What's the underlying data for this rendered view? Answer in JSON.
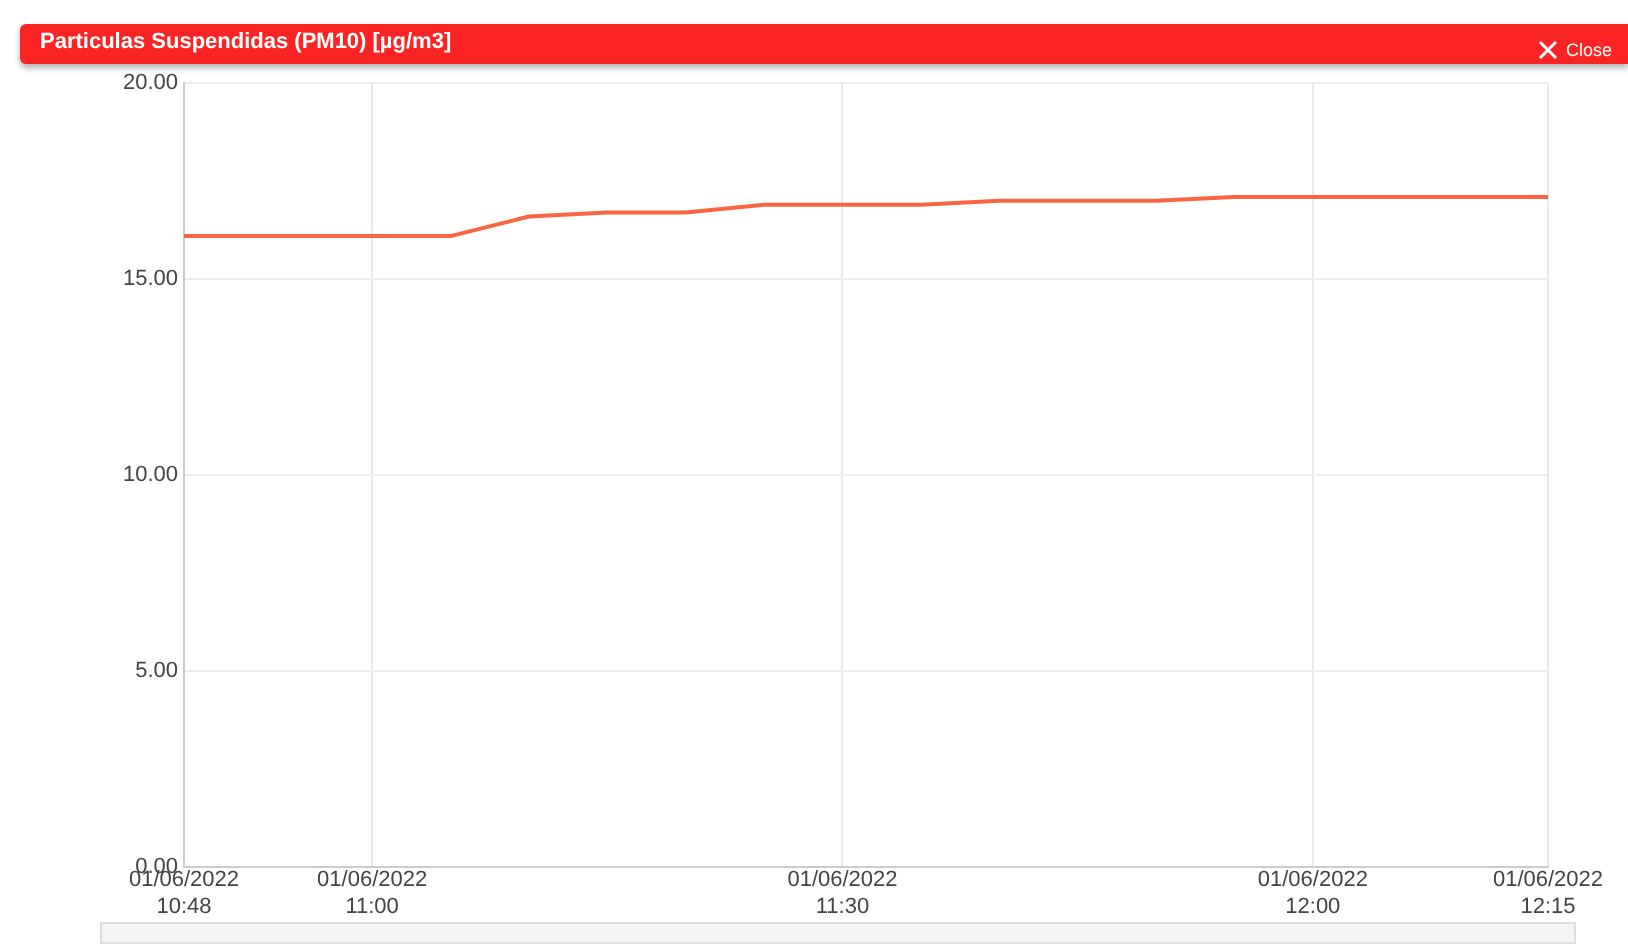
{
  "chart_data": {
    "type": "line",
    "title": "Particulas Suspendidas (PM10) [µg/m3]",
    "annotations": [
      "Close"
    ],
    "x": [
      "2022-06-01T10:48",
      "2022-06-01T10:55",
      "2022-06-01T11:00",
      "2022-06-01T11:05",
      "2022-06-01T11:10",
      "2022-06-01T11:15",
      "2022-06-01T11:20",
      "2022-06-01T11:25",
      "2022-06-01T11:30",
      "2022-06-01T11:35",
      "2022-06-01T11:40",
      "2022-06-01T11:45",
      "2022-06-01T11:50",
      "2022-06-01T11:55",
      "2022-06-01T12:00",
      "2022-06-01T12:05",
      "2022-06-01T12:10",
      "2022-06-01T12:15"
    ],
    "series": [
      {
        "color": "#f8653f",
        "values": [
          16.1,
          16.1,
          16.1,
          16.1,
          16.6,
          16.7,
          16.7,
          16.9,
          16.9,
          16.9,
          17.0,
          17.0,
          17.0,
          17.1,
          17.1,
          17.1,
          17.1,
          17.1
        ]
      }
    ],
    "xlim": [
      "2022-06-01T10:48",
      "2022-06-01T12:15"
    ],
    "xticks": [
      {
        "value": "2022-06-01T10:48",
        "label": "01/06/2022\n10:48"
      },
      {
        "value": "2022-06-01T11:00",
        "label": "01/06/2022\n11:00"
      },
      {
        "value": "2022-06-01T11:30",
        "label": "01/06/2022\n11:30"
      },
      {
        "value": "2022-06-01T12:00",
        "label": "01/06/2022\n12:00"
      },
      {
        "value": "2022-06-01T12:15",
        "label": "01/06/2022\n12:15"
      }
    ],
    "ylim": [
      0,
      20
    ],
    "yticks": [
      {
        "value": 0,
        "label": "0.00"
      },
      {
        "value": 5,
        "label": "5.00"
      },
      {
        "value": 10,
        "label": "10.00"
      },
      {
        "value": 15,
        "label": "15.00"
      },
      {
        "value": 20,
        "label": "20.00"
      }
    ],
    "grid": true,
    "legend": false,
    "marker": "none",
    "line_style": "solid"
  }
}
